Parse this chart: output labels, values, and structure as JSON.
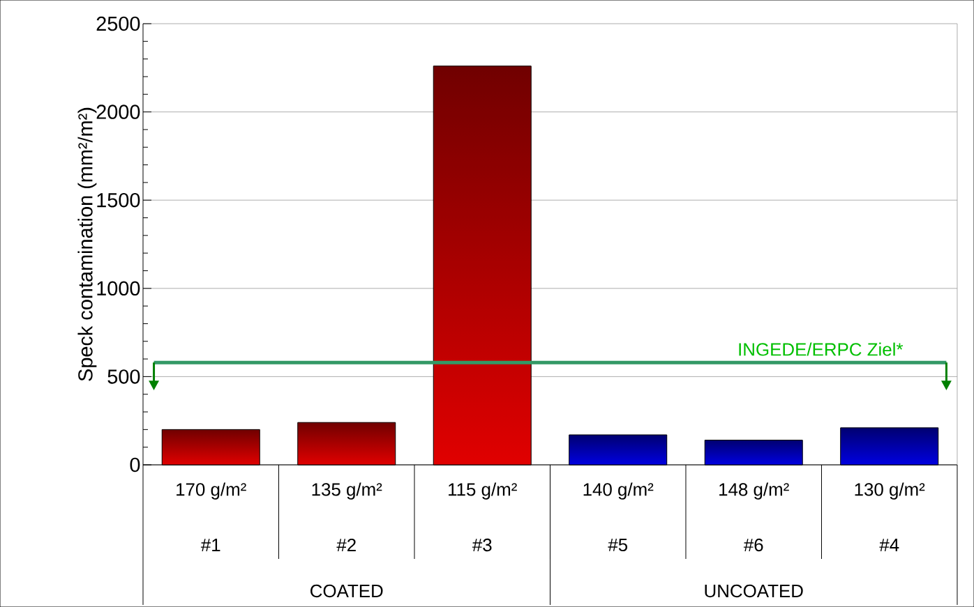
{
  "chart_data": {
    "type": "bar",
    "ylabel": "Speck contamination (mm²/m²)",
    "categories": [
      "170 g/m²",
      "135 g/m²",
      "115 g/m²",
      "140 g/m²",
      "148 g/m²",
      "130 g/m²"
    ],
    "values": [
      200,
      240,
      2260,
      170,
      140,
      210
    ],
    "colors": [
      "#e00000",
      "#e00000",
      "#e00000",
      "#0000e0",
      "#0000e0",
      "#0000e0"
    ],
    "ylim": [
      0,
      2500
    ],
    "yticks": [
      0,
      500,
      1000,
      1500,
      2000,
      2500
    ],
    "grid": "y",
    "ref_lines": [
      {
        "axis": "y",
        "value": 580,
        "label": "INGEDE/ERPC Ziel*",
        "color": "#339966"
      }
    ],
    "annotations": [
      "#1",
      "#2",
      "#3",
      "#5",
      "#6",
      "#4",
      "COATED",
      "UNCOATED"
    ]
  }
}
